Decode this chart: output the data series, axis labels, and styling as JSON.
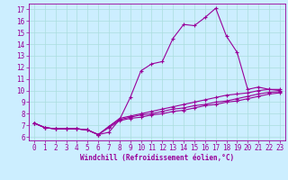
{
  "xlabel": "Windchill (Refroidissement éolien,°C)",
  "bg_color": "#cceeff",
  "line_color": "#990099",
  "grid_color": "#aadddd",
  "xlim": [
    -0.5,
    23.5
  ],
  "ylim": [
    5.7,
    17.5
  ],
  "yticks": [
    6,
    7,
    8,
    9,
    10,
    11,
    12,
    13,
    14,
    15,
    16,
    17
  ],
  "xticks": [
    0,
    1,
    2,
    3,
    4,
    5,
    6,
    7,
    8,
    9,
    10,
    11,
    12,
    13,
    14,
    15,
    16,
    17,
    18,
    19,
    20,
    21,
    22,
    23
  ],
  "series": [
    [
      7.2,
      6.8,
      6.7,
      6.7,
      6.7,
      6.6,
      6.2,
      6.4,
      7.5,
      9.4,
      11.7,
      12.3,
      12.5,
      14.5,
      15.7,
      15.6,
      16.3,
      17.1,
      14.7,
      13.3,
      10.1,
      10.3,
      10.1,
      10.0
    ],
    [
      7.2,
      6.8,
      6.7,
      6.7,
      6.7,
      6.6,
      6.2,
      6.9,
      7.6,
      7.8,
      8.0,
      8.2,
      8.4,
      8.6,
      8.8,
      9.0,
      9.2,
      9.4,
      9.6,
      9.7,
      9.8,
      10.0,
      10.1,
      10.1
    ],
    [
      7.2,
      6.8,
      6.7,
      6.7,
      6.7,
      6.6,
      6.2,
      6.9,
      7.5,
      7.7,
      7.9,
      8.0,
      8.2,
      8.4,
      8.5,
      8.7,
      8.8,
      9.0,
      9.1,
      9.3,
      9.5,
      9.7,
      9.85,
      9.9
    ],
    [
      7.2,
      6.8,
      6.7,
      6.7,
      6.7,
      6.6,
      6.2,
      6.8,
      7.4,
      7.6,
      7.7,
      7.9,
      8.0,
      8.2,
      8.3,
      8.5,
      8.7,
      8.8,
      9.0,
      9.1,
      9.3,
      9.5,
      9.7,
      9.8
    ]
  ],
  "marker": "+",
  "markersize": 3,
  "linewidth": 0.8,
  "tick_fontsize": 5.5,
  "xlabel_fontsize": 5.5
}
